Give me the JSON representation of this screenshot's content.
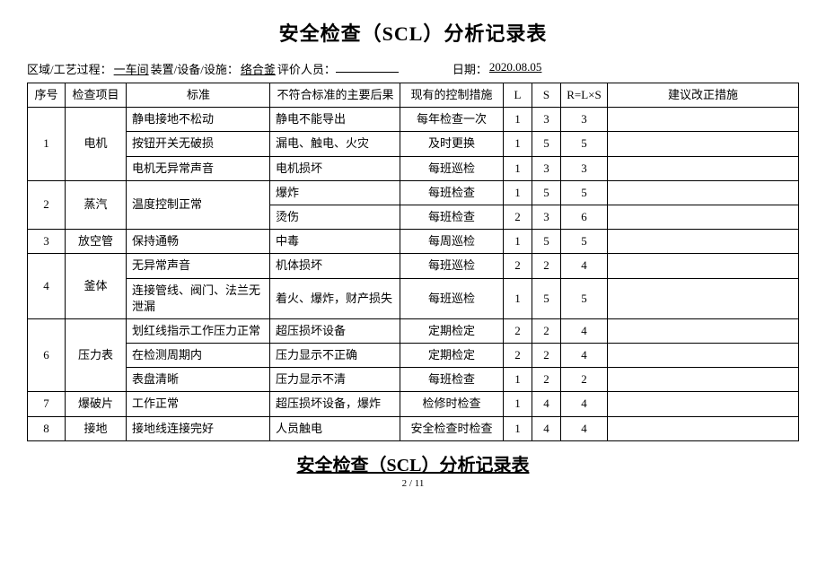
{
  "title": "安全检查（SCL）分析记录表",
  "meta": {
    "area_label": "区域/工艺过程：",
    "area_value": "一车间",
    "equip_label": " 装置/设备/设施：",
    "equip_value": "络合釜",
    "eval_label": " 评价人员：",
    "date_label": "日期：",
    "date_value": "2020.08.05"
  },
  "headers": {
    "seq": "序号",
    "item": "检查项目",
    "std": "标准",
    "conseq": "不符合标准的主要后果",
    "ctrl": "现有的控制措施",
    "l": "L",
    "s": "S",
    "r": "R=L×S",
    "sugg": "建议改正措施"
  },
  "rows": [
    {
      "seq": "1",
      "seqspan": 3,
      "item": "电机",
      "itemspan": 3,
      "std": "静电接地不松动",
      "conseq": "静电不能导出",
      "ctrl": "每年检查一次",
      "l": "1",
      "s": "3",
      "r": "3",
      "sugg": ""
    },
    {
      "std": "按钮开关无破损",
      "conseq": "漏电、触电、火灾",
      "ctrl": "及时更换",
      "l": "1",
      "s": "5",
      "r": "5",
      "sugg": ""
    },
    {
      "std": "电机无异常声音",
      "conseq": "电机损坏",
      "ctrl": "每班巡检",
      "l": "1",
      "s": "3",
      "r": "3",
      "sugg": ""
    },
    {
      "seq": "2",
      "seqspan": 2,
      "item": "蒸汽",
      "itemspan": 2,
      "std": "温度控制正常",
      "stdspan": 2,
      "conseq": "爆炸",
      "ctrl": "每班检查",
      "l": "1",
      "s": "5",
      "r": "5",
      "sugg": ""
    },
    {
      "conseq": "烫伤",
      "ctrl": "每班检查",
      "l": "2",
      "s": "3",
      "r": "6",
      "sugg": ""
    },
    {
      "seq": "3",
      "seqspan": 1,
      "item": "放空管",
      "itemspan": 1,
      "std": "保持通畅",
      "conseq": "中毒",
      "ctrl": "每周巡检",
      "l": "1",
      "s": "5",
      "r": "5",
      "sugg": ""
    },
    {
      "seq": "4",
      "seqspan": 2,
      "item": "釜体",
      "itemspan": 2,
      "std": "无异常声音",
      "conseq": "机体损坏",
      "ctrl": "每班巡检",
      "l": "2",
      "s": "2",
      "r": "4",
      "sugg": ""
    },
    {
      "std": "连接管线、阀门、法兰无泄漏",
      "conseq": "着火、爆炸，财产损失",
      "ctrl": "每班巡检",
      "l": "1",
      "s": "5",
      "r": "5",
      "sugg": ""
    },
    {
      "seq": "6",
      "seqspan": 3,
      "item": "压力表",
      "itemspan": 3,
      "std": "划红线指示工作压力正常",
      "conseq": "超压损坏设备",
      "ctrl": "定期检定",
      "l": "2",
      "s": "2",
      "r": "4",
      "sugg": ""
    },
    {
      "std": "在检测周期内",
      "conseq": "压力显示不正确",
      "ctrl": "定期检定",
      "l": "2",
      "s": "2",
      "r": "4",
      "sugg": ""
    },
    {
      "std": "表盘清晰",
      "conseq": "压力显示不清",
      "ctrl": "每班检查",
      "l": "1",
      "s": "2",
      "r": "2",
      "sugg": ""
    },
    {
      "seq": "7",
      "seqspan": 1,
      "item": "爆破片",
      "itemspan": 1,
      "std": "工作正常",
      "conseq": "超压损坏设备，爆炸",
      "ctrl": "检修时检查",
      "l": "1",
      "s": "4",
      "r": "4",
      "sugg": ""
    },
    {
      "seq": "8",
      "seqspan": 1,
      "item": "接地",
      "itemspan": 1,
      "std": "接地线连接完好",
      "conseq": "人员触电",
      "ctrl": "安全检查时检查",
      "l": "1",
      "s": "4",
      "r": "4",
      "sugg": ""
    }
  ],
  "footer_title": "安全检查（SCL）分析记录表",
  "page_num": "2 / 11"
}
